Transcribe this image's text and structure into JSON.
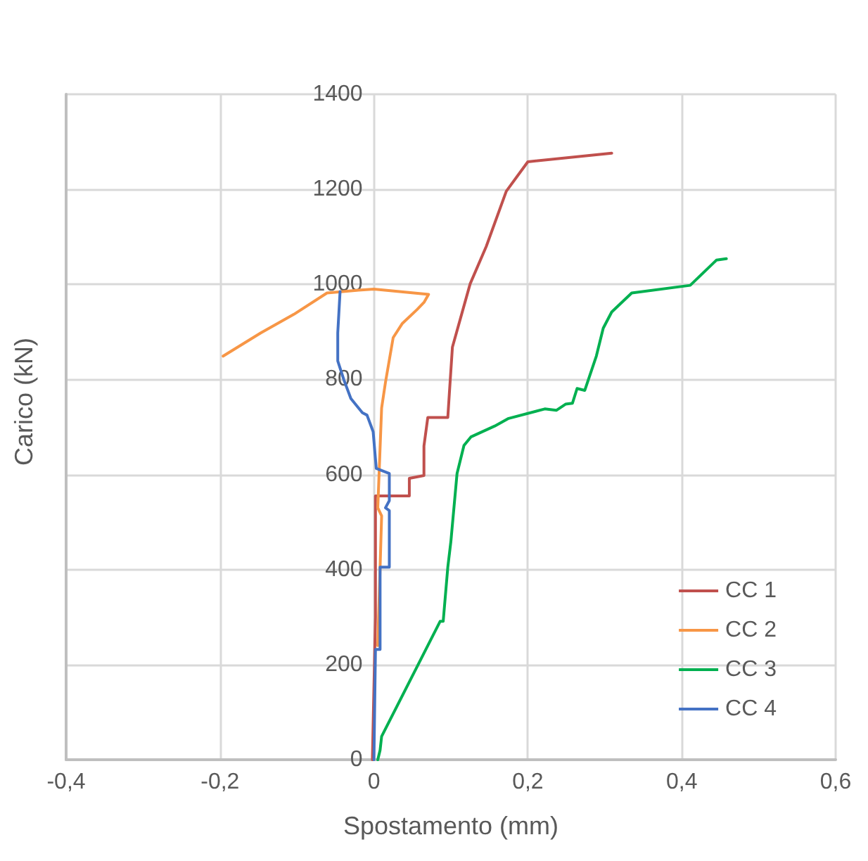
{
  "chart_data": {
    "type": "line",
    "xlabel": "Spostamento (mm)",
    "ylabel": "Carico (kN)",
    "xlim": [
      -0.4,
      0.6
    ],
    "xticks": [
      {
        "value": -0.4,
        "label": "-0,4"
      },
      {
        "value": -0.2,
        "label": "-0,2"
      },
      {
        "value": 0,
        "label": "0"
      },
      {
        "value": 0.2,
        "label": "0,2"
      },
      {
        "value": 0.4,
        "label": "0,4"
      },
      {
        "value": 0.6,
        "label": "0,6"
      }
    ],
    "ylim": [
      0,
      1400
    ],
    "yticks": [
      0,
      200,
      400,
      600,
      800,
      1000,
      1200,
      1400
    ],
    "grid": true,
    "legend": "bottom right",
    "marker": "none",
    "line_style": "solid",
    "series": [
      {
        "name": "CC 1",
        "color": "#c0504d",
        "x": [
          -0.002,
          0.002,
          0.002,
          0.046,
          0.046,
          0.065,
          0.065,
          0.07,
          0.096,
          0.098,
          0.102,
          0.125,
          0.146,
          0.172,
          0.2,
          0.309
        ],
        "values": [
          0,
          300,
          555,
          555,
          592,
          598,
          660,
          720,
          720,
          770,
          868,
          1001,
          1080,
          1196,
          1258,
          1276
        ]
      },
      {
        "name": "CC 2",
        "color": "#f79646",
        "x": [
          0.005,
          0.01,
          0.005,
          0.01,
          0.015,
          0.025,
          0.037,
          0.056,
          0.065,
          0.071,
          0,
          -0.02,
          -0.061,
          -0.104,
          -0.147,
          -0.196
        ],
        "values": [
          240,
          513,
          530,
          740,
          794,
          888,
          918,
          947,
          962,
          979,
          990,
          988,
          982,
          937,
          898,
          849
        ]
      },
      {
        "name": "CC 3",
        "color": "#00b050",
        "x": [
          0.005,
          0.008,
          0.01,
          0.086,
          0.09,
          0.096,
          0.1,
          0.108,
          0.117,
          0.126,
          0.157,
          0.175,
          0.222,
          0.237,
          0.249,
          0.258,
          0.264,
          0.274,
          0.289,
          0.298,
          0.309,
          0.335,
          0.411,
          0.445,
          0.458
        ],
        "values": [
          0,
          20,
          49,
          291,
          291,
          405,
          459,
          602,
          661,
          679,
          702,
          718,
          738,
          735,
          748,
          750,
          781,
          777,
          849,
          908,
          942,
          982,
          998,
          1051,
          1054
        ]
      },
      {
        "name": "CC 4",
        "color": "#4472c4",
        "x": [
          0,
          0.002,
          0.008,
          0.008,
          0.02,
          0.02,
          0.015,
          0.02,
          0.02,
          0.003,
          -0.001,
          -0.009,
          -0.015,
          -0.03,
          -0.039,
          -0.047,
          -0.047,
          -0.044
        ],
        "values": [
          0,
          232,
          232,
          405,
          405,
          524,
          530,
          545,
          602,
          613,
          690,
          725,
          730,
          760,
          799,
          839,
          898,
          985
        ]
      }
    ]
  }
}
